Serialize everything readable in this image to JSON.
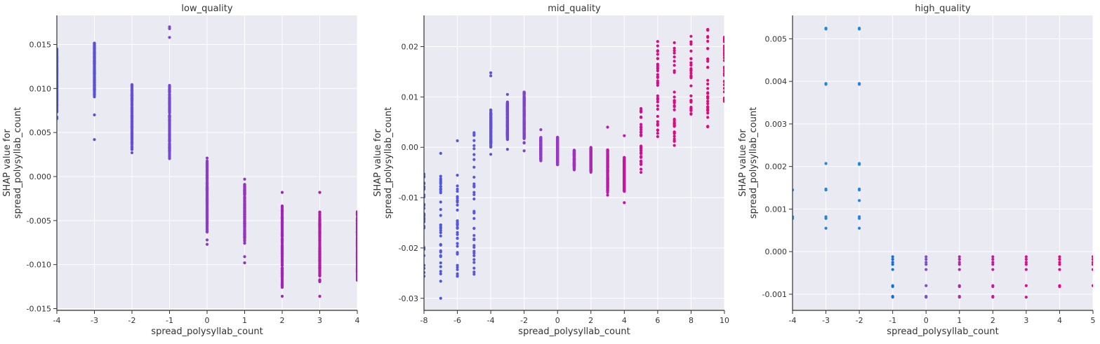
{
  "chart_data": [
    {
      "type": "scatter",
      "title": "low_quality",
      "xlabel": "spread_polysyllab_count",
      "ylabel_line1": "SHAP value for",
      "ylabel_line2": "spread_polysyllab_count",
      "xlim": [
        -4,
        4
      ],
      "ylim": [
        -0.0152,
        0.0183
      ],
      "xticks": [
        -4,
        -3,
        -2,
        -1,
        0,
        1,
        2,
        3,
        4
      ],
      "xtick_labels": [
        "-4",
        "-3",
        "-2",
        "-1",
        "0",
        "1",
        "2",
        "3",
        "4"
      ],
      "yticks": [
        -0.015,
        -0.01,
        -0.005,
        0.0,
        0.005,
        0.01,
        0.015
      ],
      "ytick_labels": [
        "-0.015",
        "-0.010",
        "-0.005",
        "0.000",
        "0.005",
        "0.010",
        "0.015"
      ],
      "grid": true,
      "columns": [
        {
          "x": -4,
          "y_min": 0.0065,
          "y_max": 0.0145,
          "y_extra": [],
          "color": "#4f5bd5"
        },
        {
          "x": -3,
          "y_min": 0.009,
          "y_max": 0.0152,
          "y_extra": [
            0.007,
            0.0042
          ],
          "color": "#5a52d6"
        },
        {
          "x": -2,
          "y_min": 0.003,
          "y_max": 0.0106,
          "y_extra": [
            0.0027
          ],
          "color": "#6a4fd2"
        },
        {
          "x": -1,
          "y_min": 0.002,
          "y_max": 0.0105,
          "y_extra": [
            0.017,
            0.0168,
            0.0158
          ],
          "color": "#7a47cf"
        },
        {
          "x": 0,
          "y_min": -0.0065,
          "y_max": 0.0018,
          "y_extra": [
            0.0021,
            -0.0072,
            -0.0077
          ],
          "color": "#8a3dca"
        },
        {
          "x": 1,
          "y_min": -0.0076,
          "y_max": -0.0007,
          "y_extra": [
            -0.0003,
            -0.0091,
            -0.0098
          ],
          "color": "#9432c2"
        },
        {
          "x": 2,
          "y_min": -0.0128,
          "y_max": -0.0033,
          "y_extra": [
            -0.0018,
            -0.0136
          ],
          "color": "#a126b5"
        },
        {
          "x": 3,
          "y_min": -0.012,
          "y_max": -0.004,
          "y_extra": [
            -0.0018,
            -0.0136
          ],
          "color": "#b01fa8"
        },
        {
          "x": 4,
          "y_min": -0.0118,
          "y_max": -0.0038,
          "y_extra": [],
          "color": "#b31ea6"
        }
      ]
    },
    {
      "type": "scatter",
      "title": "mid_quality",
      "xlabel": "spread_polysyllab_count",
      "ylabel_line1": "SHAP value for",
      "ylabel_line2": "spread_polysyllab_count",
      "xlim": [
        -8,
        10
      ],
      "ylim": [
        -0.0324,
        0.0262
      ],
      "xticks": [
        -8,
        -6,
        -4,
        -2,
        0,
        2,
        4,
        6,
        8,
        10
      ],
      "xtick_labels": [
        "-8",
        "-6",
        "-4",
        "-2",
        "0",
        "2",
        "4",
        "6",
        "8",
        "10"
      ],
      "yticks": [
        -0.03,
        -0.02,
        -0.01,
        0.0,
        0.01,
        0.02
      ],
      "ytick_labels": [
        "-0.03",
        "-0.02",
        "-0.01",
        "0.00",
        "0.01",
        "0.02"
      ],
      "grid": true,
      "columns": [
        {
          "x": -8,
          "y_min": -0.026,
          "y_max": -0.004,
          "y_extra": [],
          "color": "#4b5bd6",
          "sparse": true
        },
        {
          "x": -7,
          "y_min": -0.027,
          "y_max": -0.004,
          "y_extra": [
            -0.03,
            -0.0012
          ],
          "color": "#4f5ad8",
          "sparse": true
        },
        {
          "x": -6,
          "y_min": -0.026,
          "y_max": -0.005,
          "y_extra": [
            0.0013
          ],
          "color": "#5558d8",
          "sparse": true
        },
        {
          "x": -5,
          "y_min": -0.026,
          "y_max": 0.003,
          "y_extra": [],
          "color": "#5c57d8",
          "sparse": true
        },
        {
          "x": -4,
          "y_min": 0.0,
          "y_max": 0.0075,
          "y_extra": [
            0.0148,
            0.0142,
            -0.0014
          ],
          "color": "#6352d6"
        },
        {
          "x": -3,
          "y_min": 0.0015,
          "y_max": 0.009,
          "y_extra": [
            0.0105,
            -0.0004
          ],
          "color": "#7049d2"
        },
        {
          "x": -2,
          "y_min": 0.0008,
          "y_max": 0.011,
          "y_extra": [
            -0.0007
          ],
          "color": "#7d45cf"
        },
        {
          "x": -1,
          "y_min": -0.0028,
          "y_max": 0.002,
          "y_extra": [
            0.0035
          ],
          "color": "#8d3dc9"
        },
        {
          "x": 0,
          "y_min": -0.0035,
          "y_max": 0.002,
          "y_extra": [],
          "color": "#983ac5"
        },
        {
          "x": 1,
          "y_min": -0.0045,
          "y_max": -0.0005,
          "y_extra": [],
          "color": "#a230bd"
        },
        {
          "x": 2,
          "y_min": -0.005,
          "y_max": 0.0,
          "y_extra": [],
          "color": "#ad29b2"
        },
        {
          "x": 3,
          "y_min": -0.009,
          "y_max": -0.0005,
          "y_extra": [
            0.004,
            -0.0095
          ],
          "color": "#bd1aa8"
        },
        {
          "x": 4,
          "y_min": -0.009,
          "y_max": -0.002,
          "y_extra": [
            0.0023,
            -0.011
          ],
          "color": "#c9139d"
        },
        {
          "x": 5,
          "y_min": -0.005,
          "y_max": 0.008,
          "y_extra": [],
          "color": "#d60c93",
          "sparse": true
        },
        {
          "x": 6,
          "y_min": 0.001,
          "y_max": 0.0235,
          "y_extra": [],
          "color": "#de088a",
          "sparse": true
        },
        {
          "x": 7,
          "y_min": 0.0,
          "y_max": 0.022,
          "y_extra": [],
          "color": "#e20784",
          "sparse": true
        },
        {
          "x": 8,
          "y_min": 0.0055,
          "y_max": 0.0225,
          "y_extra": [],
          "color": "#e4067f",
          "sparse": true
        },
        {
          "x": 9,
          "y_min": 0.004,
          "y_max": 0.0235,
          "y_extra": [],
          "color": "#e6057b",
          "sparse": true
        },
        {
          "x": 10,
          "y_min": 0.009,
          "y_max": 0.022,
          "y_extra": [],
          "color": "#e80578",
          "sparse": true
        }
      ]
    },
    {
      "type": "scatter",
      "title": "high_quality",
      "xlabel": "spread_polysyllab_count",
      "ylabel_line1": "SHAP value for",
      "ylabel_line2": "spread_polysyllab_count",
      "xlim": [
        -4,
        5
      ],
      "ylim": [
        -0.00138,
        0.00555
      ],
      "xticks": [
        -4,
        -3,
        -2,
        -1,
        0,
        1,
        2,
        3,
        4,
        5
      ],
      "xtick_labels": [
        "-4",
        "-3",
        "-2",
        "-1",
        "0",
        "1",
        "2",
        "3",
        "4",
        "5"
      ],
      "yticks": [
        -0.001,
        0.0,
        0.001,
        0.002,
        0.003,
        0.004,
        0.005
      ],
      "ytick_labels": [
        "-0.001",
        "0.000",
        "0.001",
        "0.002",
        "0.003",
        "0.004",
        "0.005"
      ],
      "grid": true,
      "points": [
        {
          "x": -4,
          "y": [
            0.00145,
            0.00082,
            0.00078
          ],
          "color": "#1e86e8"
        },
        {
          "x": -3,
          "y": [
            0.00525,
            0.00523,
            0.00395,
            0.00393,
            0.00207,
            0.00147,
            0.00145,
            0.00082,
            0.00078,
            0.00055
          ],
          "color": "#1e86e8"
        },
        {
          "x": -2,
          "y": [
            0.00525,
            0.00523,
            0.00395,
            0.00393,
            0.00207,
            0.00205,
            0.00147,
            0.00145,
            0.0012,
            0.00082,
            0.00078,
            0.00055
          ],
          "color": "#1e86e8"
        },
        {
          "x": -1,
          "y": [
            -0.00012,
            -0.00018,
            -0.00025,
            -0.0003,
            -0.00042,
            -0.0008,
            -0.00082,
            -0.00105,
            -0.00107
          ],
          "color": "#1a6fd6"
        },
        {
          "x": 0,
          "y": [
            -0.00012,
            -0.00018,
            -0.00025,
            -0.0003,
            -0.00042,
            -0.0008,
            -0.00105,
            -0.00107
          ],
          "color": "#7d4fd0"
        },
        {
          "x": 1,
          "y": [
            -0.00012,
            -0.00018,
            -0.00025,
            -0.0003,
            -0.00042,
            -0.0008,
            -0.00082,
            -0.00105,
            -0.00107
          ],
          "color": "#b229ae"
        },
        {
          "x": 2,
          "y": [
            -0.00012,
            -0.00018,
            -0.00025,
            -0.0003,
            -0.00042,
            -0.0008,
            -0.00082,
            -0.00105,
            -0.00107
          ],
          "color": "#c91a9e"
        },
        {
          "x": 3,
          "y": [
            -0.00012,
            -0.00018,
            -0.00025,
            -0.0003,
            -0.00042,
            -0.0008,
            -0.00107
          ],
          "color": "#d9108f"
        },
        {
          "x": 4,
          "y": [
            -0.00012,
            -0.00018,
            -0.00025,
            -0.0003,
            -0.00042,
            -0.0008,
            -0.00082
          ],
          "color": "#e40a82"
        },
        {
          "x": 5,
          "y": [
            -0.00012,
            -0.00018,
            -0.00025,
            -0.0003,
            -0.00042,
            -0.0008
          ],
          "color": "#e80578"
        }
      ]
    }
  ],
  "style": {
    "plot_background": "#eaeaf2",
    "grid_color": "#ffffff",
    "axis_color": "#333333"
  }
}
